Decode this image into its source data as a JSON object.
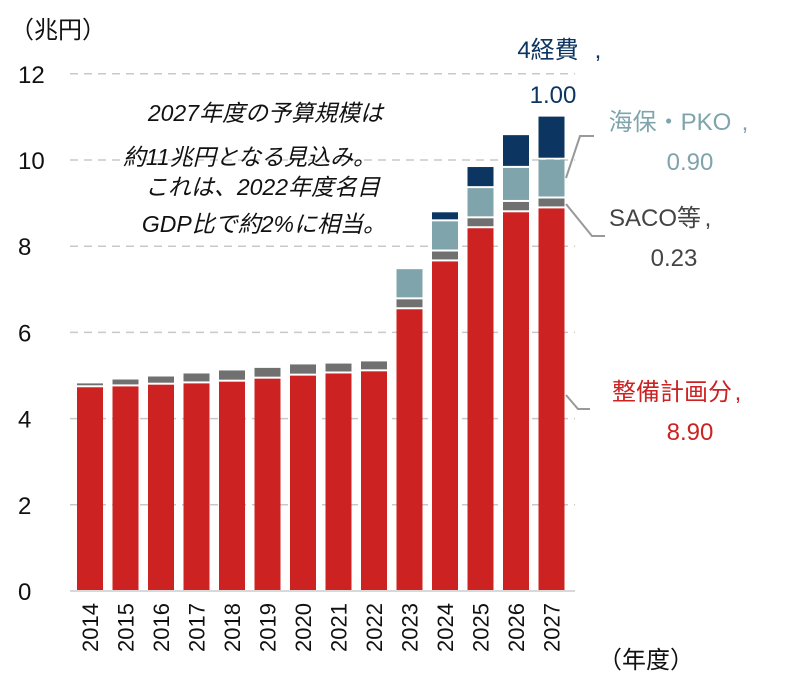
{
  "chart_data": {
    "type": "bar",
    "stacked": true,
    "ylabel": "（兆円）",
    "xlabel": "（年度）",
    "ylim": [
      0,
      12
    ],
    "yticks": [
      0,
      2,
      4,
      6,
      8,
      10,
      12
    ],
    "grid": "horizontal-dashed",
    "categories": [
      "2014",
      "2015",
      "2016",
      "2017",
      "2018",
      "2019",
      "2020",
      "2021",
      "2022",
      "2023",
      "2024",
      "2025",
      "2026",
      "2027"
    ],
    "series": [
      {
        "name": "整備計画分",
        "value_label": "8.90",
        "color": "#cc2222",
        "values": [
          4.75,
          4.77,
          4.81,
          4.84,
          4.88,
          4.95,
          5.02,
          5.07,
          5.12,
          6.56,
          7.67,
          8.44,
          8.81,
          8.9
        ]
      },
      {
        "name": "SACO等",
        "value_label": "0.23",
        "color": "#707070",
        "values": [
          0.09,
          0.16,
          0.19,
          0.23,
          0.26,
          0.25,
          0.26,
          0.23,
          0.23,
          0.23,
          0.23,
          0.23,
          0.24,
          0.23
        ]
      },
      {
        "name": "海保・PKO",
        "value_label": "0.90",
        "color": "#7fa4ab",
        "values": [
          0,
          0,
          0,
          0,
          0,
          0,
          0,
          0,
          0,
          0.7,
          0.7,
          0.7,
          0.79,
          0.9
        ]
      },
      {
        "name": "4経費",
        "value_label": "1.00",
        "color": "#0d3561",
        "values": [
          0,
          0,
          0,
          0,
          0,
          0,
          0,
          0,
          0,
          0,
          0.21,
          0.49,
          0.76,
          1.0
        ]
      }
    ],
    "annotation": [
      "2027年度の予算規模は",
      "約11兆円となる見込み。",
      "これは、2022年度名目",
      "GDP比で約2%に相当。"
    ]
  }
}
